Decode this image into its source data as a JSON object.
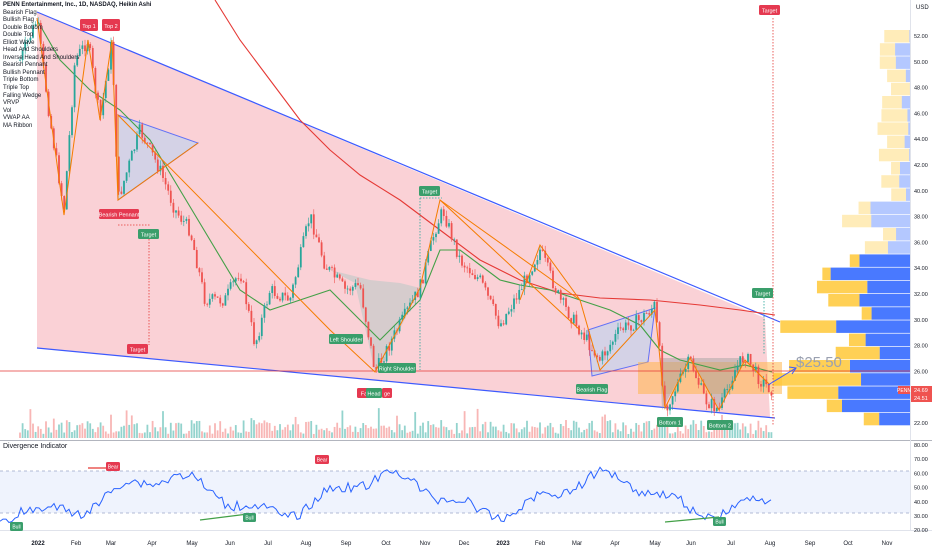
{
  "header": {
    "symbol_line": "PENN Entertainment, Inc., 1D, NASDAQ, Heikin Ashi",
    "currency": "USD"
  },
  "legend": {
    "items": [
      "Bearish Flag",
      "Bullish Flag",
      "Double Bottom",
      "Double Top",
      "Elliott Wave",
      "Head And Shoulders",
      "Inverse Head And Shoulders",
      "Bearish Pennant",
      "Bullish Pennant",
      "Triple Bottom",
      "Triple Top",
      "Falling Wedge",
      "VRVP",
      "Vol",
      "VWAP AA",
      "MA Ribbon"
    ]
  },
  "price_axis": {
    "ticks": [
      "52.00",
      "50.00",
      "48.00",
      "46.00",
      "44.00",
      "42.00",
      "40.00",
      "38.00",
      "36.00",
      "34.00",
      "32.00",
      "30.00",
      "28.00",
      "26.00",
      "24.00",
      "22.00"
    ],
    "last_price_symbol": "PENN",
    "last_price": "24.69",
    "second_price": "24.51"
  },
  "time_axis": {
    "labels": [
      "2022",
      "Feb",
      "Mar",
      "Apr",
      "May",
      "Jun",
      "Jul",
      "Aug",
      "Sep",
      "Oct",
      "Nov",
      "Dec",
      "2023",
      "Feb",
      "Mar",
      "Apr",
      "May",
      "Jun",
      "Jul",
      "Aug",
      "Sep",
      "Oct",
      "Nov"
    ]
  },
  "pattern_labels": {
    "top1": "Top 1",
    "top2": "Top 2",
    "bearish_pennant": "Bearish Pennant",
    "target_top": "Target",
    "target_pennant": "Target",
    "target_lower": "Target",
    "target_mid": "Target",
    "target_right": "Target",
    "left_shoulder": "Left Shoulder",
    "right_shoulder": "Right Shoulder",
    "head": "Head",
    "falling_wedge_frag_left": "Fa",
    "falling_wedge_frag_right": "ge",
    "bearish_flag": "Bearish Flag",
    "bottom1": "Bottom 1",
    "bottom2": "Bottom 2",
    "price_callout": "$25.50"
  },
  "indicator": {
    "title": "Divergence Indicator",
    "ticks": [
      "80.00",
      "70.00",
      "60.00",
      "50.00",
      "40.00",
      "30.00",
      "20.00"
    ],
    "labels": {
      "bear1": "Bear",
      "bear2": "Bear",
      "bull1": "Bull",
      "bull2": "Bull",
      "bull3": "Bull"
    }
  },
  "colors": {
    "wedge_fill": "#f9c9cf",
    "wedge_line": "#3d5afe",
    "bull": "#26a69a",
    "bear": "#ef5350",
    "ma_red": "#e53935",
    "ma_green": "#43a047",
    "orange": "#f57c00",
    "vp_blue": "#2962ff",
    "vp_orange": "#ffc837",
    "rsi": "#2962ff",
    "label_red": "#e53950",
    "label_green": "#3a9e6b"
  }
}
